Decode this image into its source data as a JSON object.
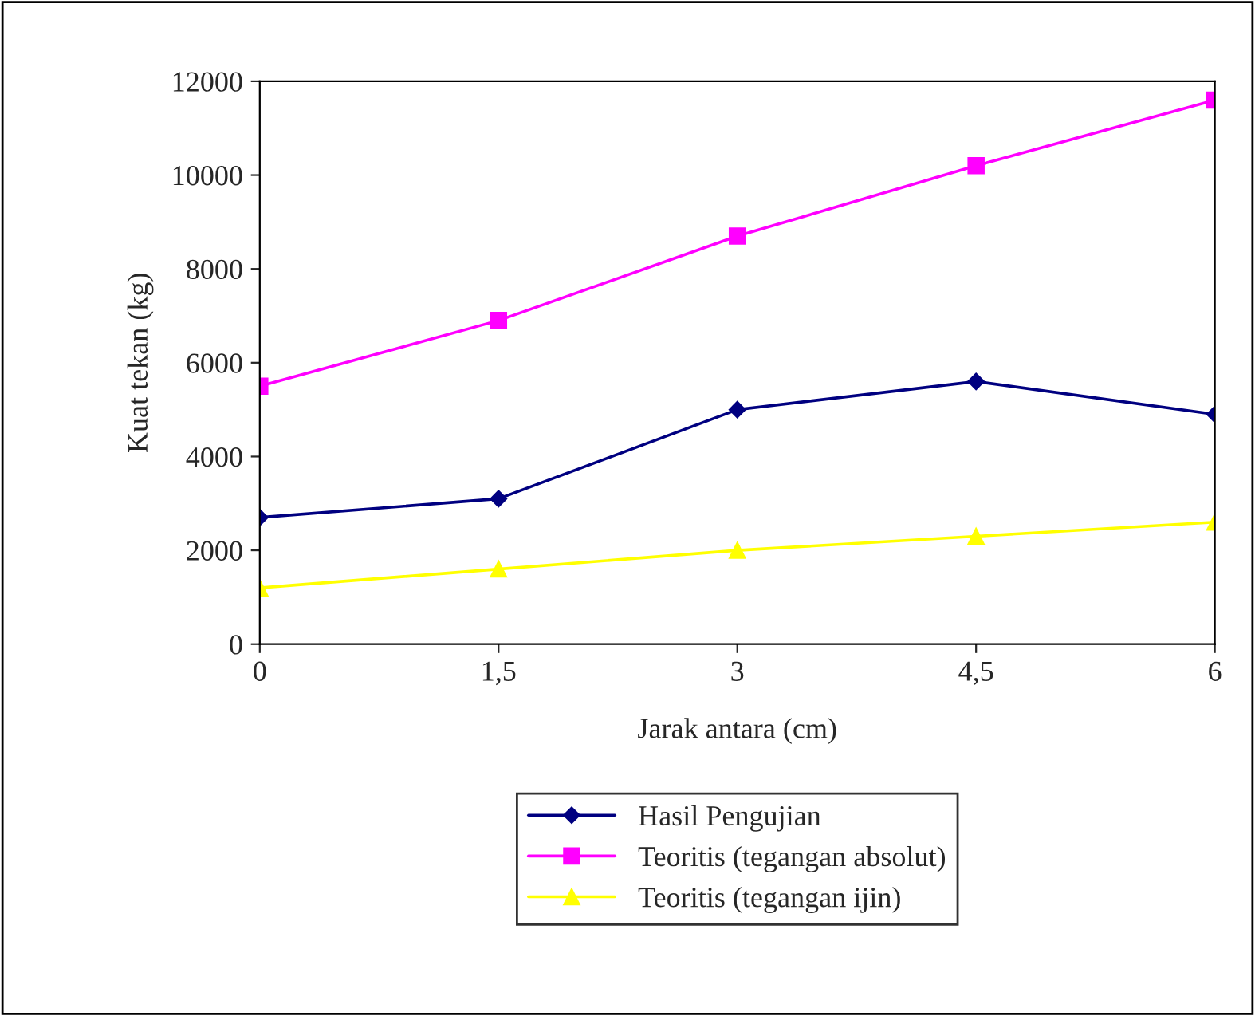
{
  "chart_data": {
    "type": "line",
    "xlabel": "Jarak antara (cm)",
    "ylabel": "Kuat tekan (kg)",
    "x": [
      0,
      1.5,
      3,
      4.5,
      6
    ],
    "series": [
      {
        "name": "Hasil Pengujian",
        "color": "#000080",
        "marker": "diamond",
        "values": [
          2700,
          3100,
          5000,
          5600,
          4900
        ]
      },
      {
        "name": "Teoritis (tegangan absolut)",
        "color": "#ff00ff",
        "marker": "square",
        "values": [
          5500,
          6900,
          8700,
          10200,
          11600
        ]
      },
      {
        "name": "Teoritis (tegangan ijin)",
        "color": "#ffff00",
        "marker": "triangle",
        "values": [
          1200,
          1600,
          2000,
          2300,
          2600
        ]
      }
    ],
    "xlim": [
      0,
      6
    ],
    "xticks": [
      0,
      {
        "value": 1.5,
        "label": "1,5"
      },
      3,
      {
        "value": 4.5,
        "label": "4,5"
      },
      6
    ],
    "ylim": [
      0,
      12000
    ],
    "yticks": [
      0,
      2000,
      4000,
      6000,
      8000,
      10000,
      12000
    ],
    "grid": false,
    "legend": "bottom",
    "line_style": "solid"
  }
}
